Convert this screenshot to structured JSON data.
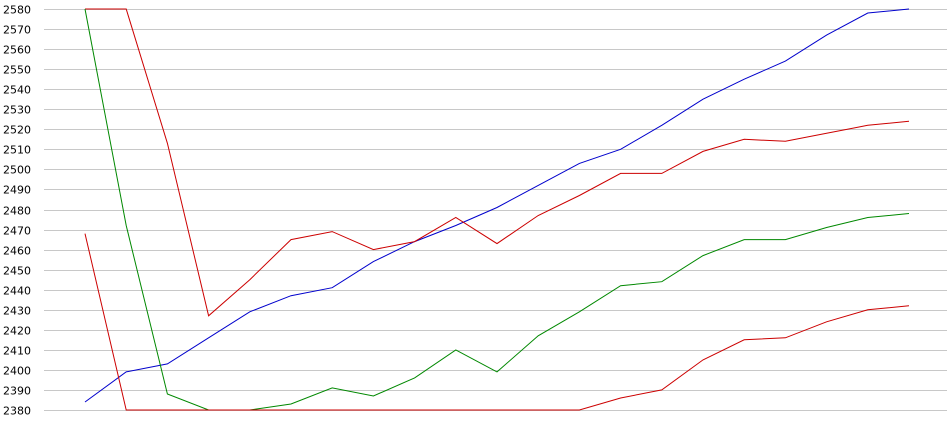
{
  "chart_data": {
    "type": "line",
    "title": "",
    "xlabel": "",
    "ylabel": "",
    "ylim": [
      2380,
      2580
    ],
    "yticks": [
      2380,
      2390,
      2400,
      2410,
      2420,
      2430,
      2440,
      2450,
      2460,
      2470,
      2480,
      2490,
      2500,
      2510,
      2520,
      2530,
      2540,
      2550,
      2560,
      2570,
      2580
    ],
    "grid": true,
    "legend": "none",
    "x": [
      0,
      1,
      2,
      3,
      4,
      5,
      6,
      7,
      8,
      9,
      10,
      11,
      12,
      13,
      14,
      15,
      16,
      17,
      18,
      19,
      20
    ],
    "series": [
      {
        "color": "#0000cc",
        "values": [
          2384,
          2399,
          2403,
          2416,
          2429,
          2437,
          2441,
          2454,
          2464,
          2472,
          2481,
          2492,
          2503,
          2510,
          2522,
          2535,
          2545,
          2554,
          2567,
          2578,
          2580
        ]
      },
      {
        "color": "#cc0000",
        "values": [
          2580,
          2580,
          2513,
          2427,
          2445,
          2465,
          2469,
          2460,
          2464,
          2476,
          2463,
          2477,
          2487,
          2498,
          2498,
          2509,
          2515,
          2514,
          2518,
          2522,
          2524
        ]
      },
      {
        "color": "#008800",
        "values": [
          2580,
          2472,
          2388,
          2380,
          2380,
          2383,
          2391,
          2387,
          2396,
          2410,
          2399,
          2417,
          2429,
          2442,
          2444,
          2457,
          2465,
          2465,
          2471,
          2476,
          2478
        ]
      },
      {
        "color": "#cc0000",
        "values": [
          2468,
          2380,
          2380,
          2380,
          2380,
          2380,
          2380,
          2380,
          2380,
          2380,
          2380,
          2380,
          2380,
          2386,
          2390,
          2405,
          2415,
          2416,
          2424,
          2430,
          2432
        ]
      }
    ]
  }
}
